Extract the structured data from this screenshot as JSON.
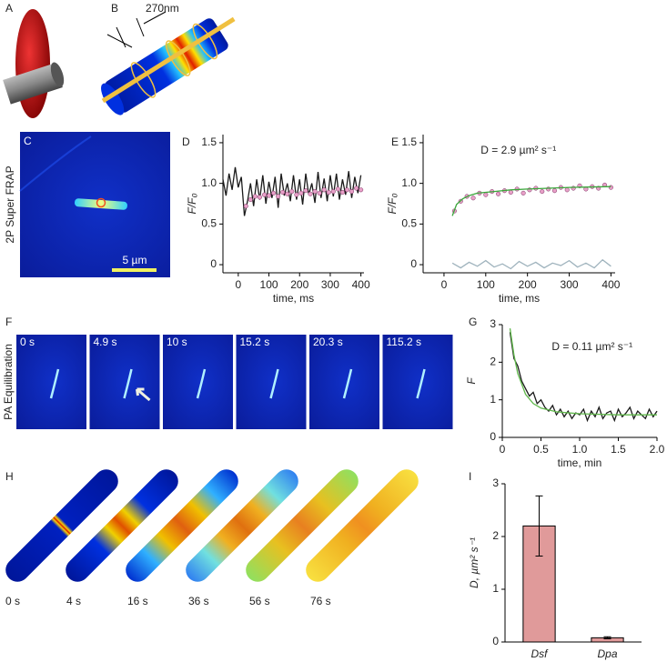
{
  "panel_labels": [
    "A",
    "B",
    "C",
    "D",
    "E",
    "F",
    "G",
    "H",
    "I"
  ],
  "illustration_b": {
    "scale_label": "270nm"
  },
  "image_c": {
    "side_label": "2P Super FRAP",
    "scale_bar": "5 µm"
  },
  "image_f": {
    "side_label": "PA Equilibration",
    "times": [
      "0 s",
      "4.9 s",
      "10 s",
      "15.2 s",
      "20.3 s",
      "115.2 s"
    ]
  },
  "illustration_h": {
    "times": [
      "0 s",
      "4 s",
      "16 s",
      "36 s",
      "56 s",
      "76 s"
    ]
  },
  "chart_data": [
    {
      "type": "line",
      "xlabel": "time, ms",
      "ylabel": "F/F₀",
      "xlim": [
        -50,
        410
      ],
      "ylim": [
        -0.1,
        1.6
      ],
      "xticks": [
        0,
        100,
        200,
        300,
        400
      ],
      "yticks": [
        0,
        0.5,
        {
          "value": 1,
          "label": "1.0"
        },
        1.5
      ],
      "series": [
        {
          "mode": "lines",
          "color": "#1a1a1a",
          "x": [
            -50,
            -40,
            -30,
            -20,
            -10,
            0,
            10,
            20,
            30,
            40,
            50,
            60,
            70,
            80,
            90,
            100,
            110,
            120,
            130,
            140,
            150,
            160,
            170,
            180,
            190,
            200,
            210,
            220,
            230,
            240,
            250,
            260,
            270,
            280,
            290,
            300,
            310,
            320,
            330,
            340,
            350,
            360,
            370,
            380,
            390,
            400
          ],
          "values": [
            1.05,
            0.85,
            1.12,
            0.92,
            1.2,
            0.95,
            1.08,
            0.6,
            0.78,
            1.0,
            0.72,
            1.05,
            0.8,
            1.1,
            0.75,
            1.02,
            0.82,
            1.08,
            0.7,
            1.12,
            0.85,
            1.0,
            0.78,
            1.1,
            0.8,
            1.05,
            0.74,
            1.12,
            0.86,
            1.0,
            0.76,
            1.14,
            0.82,
            1.06,
            0.78,
            1.1,
            0.84,
            1.12,
            0.8,
            1.05,
            0.86,
            1.15,
            0.82,
            1.08,
            0.88,
            1.1
          ]
        },
        {
          "mode": "markers",
          "color": "#e8a0c8",
          "x": [
            25,
            40,
            55,
            70,
            85,
            100,
            115,
            130,
            145,
            160,
            175,
            190,
            205,
            220,
            235,
            250,
            265,
            280,
            295,
            310,
            325,
            340,
            355,
            370,
            385,
            400
          ],
          "values": [
            0.72,
            0.8,
            0.84,
            0.83,
            0.86,
            0.85,
            0.88,
            0.84,
            0.89,
            0.87,
            0.9,
            0.86,
            0.88,
            0.91,
            0.87,
            0.9,
            0.88,
            0.92,
            0.89,
            0.9,
            0.93,
            0.89,
            0.92,
            0.9,
            0.94,
            0.92
          ]
        }
      ]
    },
    {
      "type": "line",
      "xlabel": "time, ms",
      "ylabel": "F/F₀",
      "annotation": "D = 2.9 µm² s⁻¹",
      "xlim": [
        -50,
        410
      ],
      "ylim": [
        -0.1,
        1.6
      ],
      "xticks": [
        0,
        100,
        200,
        300,
        400
      ],
      "yticks": [
        0,
        0.5,
        {
          "value": 1,
          "label": "1.0"
        },
        1.5
      ],
      "series": [
        {
          "mode": "lines",
          "color": "#9fb3bd",
          "x": [
            20,
            40,
            60,
            80,
            100,
            120,
            140,
            160,
            180,
            200,
            220,
            240,
            260,
            280,
            300,
            320,
            340,
            360,
            380,
            400
          ],
          "values": [
            0.02,
            -0.04,
            0.03,
            -0.02,
            0.05,
            -0.03,
            0.01,
            -0.05,
            0.04,
            -0.02,
            0.03,
            -0.04,
            0.02,
            -0.01,
            0.05,
            -0.03,
            0.02,
            -0.04,
            0.06,
            -0.02
          ]
        },
        {
          "mode": "markers",
          "color": "#e8a0c8",
          "x": [
            25,
            40,
            55,
            70,
            85,
            100,
            115,
            130,
            145,
            160,
            175,
            190,
            205,
            220,
            235,
            250,
            265,
            280,
            295,
            310,
            325,
            340,
            355,
            370,
            385,
            400
          ],
          "values": [
            0.66,
            0.78,
            0.84,
            0.82,
            0.88,
            0.86,
            0.9,
            0.87,
            0.91,
            0.89,
            0.93,
            0.88,
            0.92,
            0.94,
            0.9,
            0.93,
            0.91,
            0.95,
            0.92,
            0.94,
            0.97,
            0.93,
            0.96,
            0.94,
            0.98,
            0.95
          ]
        },
        {
          "mode": "lines",
          "color": "#3aa63a",
          "x": [
            20,
            30,
            45,
            60,
            80,
            120,
            160,
            200,
            300,
            400
          ],
          "values": [
            0.6,
            0.74,
            0.81,
            0.85,
            0.88,
            0.9,
            0.92,
            0.93,
            0.95,
            0.96
          ]
        }
      ]
    },
    {
      "type": "line",
      "xlabel": "time, min",
      "ylabel": "F",
      "annotation": "D = 0.11 µm² s⁻¹",
      "xlim": [
        0,
        2
      ],
      "ylim": [
        0,
        3
      ],
      "xticks": [
        0,
        0.5,
        {
          "value": 1,
          "label": "1.0"
        },
        1.5,
        {
          "value": 2,
          "label": "2.0"
        }
      ],
      "yticks": [
        0,
        1,
        2,
        3
      ],
      "series": [
        {
          "mode": "lines",
          "color": "#1a1a1a",
          "x": [
            0.1,
            0.15,
            0.2,
            0.25,
            0.3,
            0.35,
            0.4,
            0.45,
            0.5,
            0.55,
            0.6,
            0.65,
            0.7,
            0.75,
            0.8,
            0.85,
            0.9,
            0.95,
            1.0,
            1.05,
            1.1,
            1.15,
            1.2,
            1.25,
            1.3,
            1.35,
            1.4,
            1.45,
            1.5,
            1.55,
            1.6,
            1.65,
            1.7,
            1.75,
            1.8,
            1.85,
            1.9,
            1.95,
            2.0
          ],
          "values": [
            2.8,
            2.1,
            1.9,
            1.5,
            1.3,
            1.1,
            1.2,
            0.9,
            1.0,
            0.8,
            0.7,
            0.85,
            0.6,
            0.75,
            0.55,
            0.7,
            0.5,
            0.65,
            0.6,
            0.75,
            0.45,
            0.7,
            0.55,
            0.8,
            0.5,
            0.65,
            0.7,
            0.45,
            0.75,
            0.55,
            0.65,
            0.8,
            0.5,
            0.7,
            0.6,
            0.5,
            0.75,
            0.55,
            0.7
          ]
        },
        {
          "mode": "lines",
          "color": "#5fb84a",
          "x": [
            0.1,
            0.15,
            0.2,
            0.3,
            0.4,
            0.5,
            0.7,
            1.0,
            1.5,
            2.0
          ],
          "values": [
            2.9,
            2.2,
            1.7,
            1.15,
            0.9,
            0.78,
            0.68,
            0.63,
            0.6,
            0.6
          ]
        }
      ]
    },
    {
      "type": "bar",
      "ylabel": "D, µm² s⁻¹",
      "categories": [
        "Dsf",
        "Dpa"
      ],
      "values": [
        2.2,
        0.08
      ],
      "errors": [
        0.57,
        0.02
      ],
      "color": "#e09a9a",
      "ylim": [
        0,
        3
      ],
      "yticks": [
        0,
        1,
        2,
        3
      ]
    }
  ]
}
